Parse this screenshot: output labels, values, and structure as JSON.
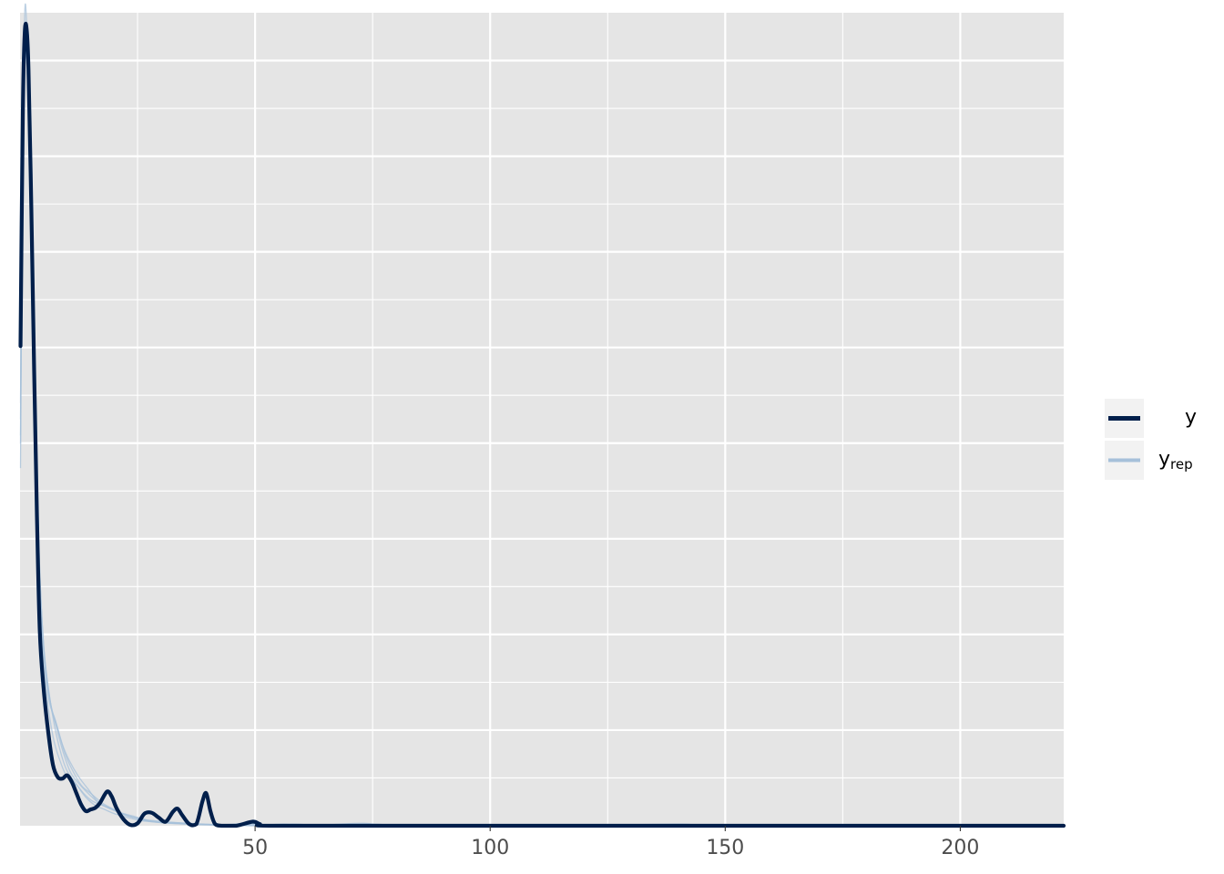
{
  "chart_data": {
    "type": "line",
    "title": "",
    "xlabel": "",
    "ylabel": "",
    "xlim": [
      0,
      222
    ],
    "ylim": [
      0,
      1
    ],
    "x_ticks": [
      50,
      100,
      150,
      200
    ],
    "x_tick_labels": [
      "50",
      "100",
      "150",
      "200"
    ],
    "grid": true,
    "legend_position": "right",
    "legend": [
      {
        "key": "y",
        "label": "y",
        "subscript": "",
        "color": "#011f4b",
        "line_width": "thick"
      },
      {
        "key": "yrep",
        "label": "y",
        "subscript": "rep",
        "color": "#a6c0da",
        "line_width": "thin"
      }
    ],
    "series": [
      {
        "name": "y",
        "role": "observed",
        "color": "#011f4b",
        "points": [
          [
            0.1,
            0.59
          ],
          [
            0.6,
            0.88
          ],
          [
            1.0,
            0.975
          ],
          [
            1.4,
            0.98
          ],
          [
            1.8,
            0.93
          ],
          [
            2.4,
            0.76
          ],
          [
            3.0,
            0.56
          ],
          [
            3.6,
            0.38
          ],
          [
            4.2,
            0.24
          ],
          [
            5.0,
            0.17
          ],
          [
            6.0,
            0.115
          ],
          [
            7.0,
            0.075
          ],
          [
            8.0,
            0.06
          ],
          [
            9.0,
            0.058
          ],
          [
            10.0,
            0.062
          ],
          [
            11.0,
            0.054
          ],
          [
            12.0,
            0.04
          ],
          [
            13.0,
            0.026
          ],
          [
            14.0,
            0.018
          ],
          [
            15.0,
            0.02
          ],
          [
            16.0,
            0.022
          ],
          [
            17.0,
            0.028
          ],
          [
            18.5,
            0.042
          ],
          [
            19.5,
            0.036
          ],
          [
            20.5,
            0.022
          ],
          [
            22.0,
            0.008
          ],
          [
            23.5,
            0.001
          ],
          [
            25.0,
            0.003
          ],
          [
            26.5,
            0.015
          ],
          [
            28.0,
            0.016
          ],
          [
            29.5,
            0.01
          ],
          [
            31.0,
            0.005
          ],
          [
            32.5,
            0.017
          ],
          [
            33.5,
            0.021
          ],
          [
            34.5,
            0.013
          ],
          [
            36.0,
            0.002
          ],
          [
            37.5,
            0.002
          ],
          [
            38.8,
            0.03
          ],
          [
            39.6,
            0.04
          ],
          [
            40.5,
            0.018
          ],
          [
            41.5,
            0.002
          ],
          [
            43.0,
            0.0
          ],
          [
            46.0,
            0.0
          ],
          [
            49.5,
            0.005
          ],
          [
            51.0,
            0.002
          ],
          [
            53.0,
            0.0
          ],
          [
            80.0,
            0.0
          ],
          [
            120.0,
            0.0
          ],
          [
            160.0,
            0.0
          ],
          [
            200.0,
            0.0
          ],
          [
            222.0,
            0.0
          ]
        ]
      },
      {
        "name": "y_rep",
        "role": "replicated",
        "color": "#a6c0da",
        "draws": [
          [
            [
              0.1,
              0.47
            ],
            [
              0.5,
              0.8
            ],
            [
              1.0,
              1.0
            ],
            [
              1.5,
              0.97
            ],
            [
              2.0,
              0.85
            ],
            [
              2.8,
              0.62
            ],
            [
              3.6,
              0.4
            ],
            [
              4.4,
              0.26
            ],
            [
              5.5,
              0.17
            ],
            [
              7.0,
              0.11
            ],
            [
              8.5,
              0.08
            ],
            [
              10.0,
              0.06
            ],
            [
              12.0,
              0.05
            ],
            [
              14.0,
              0.035
            ],
            [
              16.0,
              0.025
            ],
            [
              18.0,
              0.02
            ],
            [
              20.0,
              0.015
            ],
            [
              23.0,
              0.01
            ],
            [
              26.0,
              0.006
            ],
            [
              30.0,
              0.004
            ],
            [
              35.0,
              0.002
            ],
            [
              40.0,
              0.001
            ],
            [
              45.0,
              0.001
            ],
            [
              52.0,
              0.0
            ],
            [
              60.0,
              0.001
            ],
            [
              68.0,
              0.0
            ],
            [
              75.0,
              0.002
            ],
            [
              82.0,
              0.0
            ],
            [
              100.0,
              0.001
            ],
            [
              140.0,
              0.001
            ],
            [
              160.0,
              0.001
            ],
            [
              190.0,
              0.0
            ],
            [
              222.0,
              0.0
            ]
          ],
          [
            [
              0.1,
              0.5
            ],
            [
              0.6,
              0.84
            ],
            [
              1.1,
              0.96
            ],
            [
              1.7,
              0.9
            ],
            [
              2.4,
              0.72
            ],
            [
              3.2,
              0.52
            ],
            [
              4.0,
              0.33
            ],
            [
              5.0,
              0.22
            ],
            [
              6.5,
              0.15
            ],
            [
              8.0,
              0.12
            ],
            [
              9.5,
              0.09
            ],
            [
              11.0,
              0.07
            ],
            [
              13.0,
              0.05
            ],
            [
              15.0,
              0.04
            ],
            [
              17.5,
              0.028
            ],
            [
              20.0,
              0.02
            ],
            [
              22.0,
              0.014
            ],
            [
              25.0,
              0.009
            ],
            [
              28.0,
              0.005
            ],
            [
              32.0,
              0.003
            ],
            [
              38.0,
              0.002
            ],
            [
              44.0,
              0.001
            ],
            [
              50.0,
              0.0
            ],
            [
              56.0,
              0.002
            ],
            [
              62.0,
              0.0
            ],
            [
              90.0,
              0.001
            ],
            [
              120.0,
              0.0
            ],
            [
              186.0,
              0.001
            ],
            [
              222.0,
              0.0
            ]
          ],
          [
            [
              0.1,
              0.44
            ],
            [
              0.5,
              0.78
            ],
            [
              1.0,
              0.94
            ],
            [
              1.6,
              0.92
            ],
            [
              2.2,
              0.78
            ],
            [
              3.0,
              0.57
            ],
            [
              3.8,
              0.37
            ],
            [
              4.8,
              0.24
            ],
            [
              6.0,
              0.16
            ],
            [
              7.5,
              0.13
            ],
            [
              9.0,
              0.1
            ],
            [
              10.5,
              0.08
            ],
            [
              12.5,
              0.06
            ],
            [
              14.5,
              0.045
            ],
            [
              16.5,
              0.03
            ],
            [
              19.0,
              0.022
            ],
            [
              21.5,
              0.016
            ],
            [
              24.0,
              0.012
            ],
            [
              27.0,
              0.007
            ],
            [
              30.0,
              0.004
            ],
            [
              34.0,
              0.003
            ],
            [
              39.0,
              0.002
            ],
            [
              44.0,
              0.001
            ],
            [
              48.0,
              0.003
            ],
            [
              54.0,
              0.0
            ],
            [
              64.0,
              0.001
            ],
            [
              73.0,
              0.003
            ],
            [
              80.0,
              0.0
            ],
            [
              110.0,
              0.0
            ],
            [
              140.0,
              0.002
            ],
            [
              150.0,
              0.0
            ],
            [
              222.0,
              0.0
            ]
          ],
          [
            [
              0.1,
              0.52
            ],
            [
              0.6,
              0.86
            ],
            [
              1.2,
              0.95
            ],
            [
              1.8,
              0.88
            ],
            [
              2.5,
              0.7
            ],
            [
              3.3,
              0.5
            ],
            [
              4.2,
              0.31
            ],
            [
              5.2,
              0.21
            ],
            [
              6.8,
              0.14
            ],
            [
              8.2,
              0.1
            ],
            [
              9.8,
              0.07
            ],
            [
              11.5,
              0.055
            ],
            [
              13.5,
              0.04
            ],
            [
              15.5,
              0.03
            ],
            [
              18.0,
              0.024
            ],
            [
              20.5,
              0.018
            ],
            [
              23.0,
              0.012
            ],
            [
              26.0,
              0.008
            ],
            [
              29.0,
              0.006
            ],
            [
              33.0,
              0.004
            ],
            [
              37.0,
              0.002
            ],
            [
              42.0,
              0.001
            ],
            [
              47.0,
              0.002
            ],
            [
              55.0,
              0.0
            ],
            [
              70.0,
              0.001
            ],
            [
              95.0,
              0.0
            ],
            [
              130.0,
              0.001
            ],
            [
              170.0,
              0.0
            ],
            [
              222.0,
              0.0
            ]
          ],
          [
            [
              0.1,
              0.48
            ],
            [
              0.5,
              0.82
            ],
            [
              1.0,
              0.97
            ],
            [
              1.6,
              0.93
            ],
            [
              2.3,
              0.76
            ],
            [
              3.1,
              0.55
            ],
            [
              3.9,
              0.36
            ],
            [
              4.9,
              0.23
            ],
            [
              6.2,
              0.16
            ],
            [
              7.8,
              0.12
            ],
            [
              9.2,
              0.09
            ],
            [
              10.8,
              0.065
            ],
            [
              12.8,
              0.05
            ],
            [
              14.8,
              0.038
            ],
            [
              17.0,
              0.027
            ],
            [
              19.5,
              0.02
            ],
            [
              22.5,
              0.013
            ],
            [
              25.5,
              0.008
            ],
            [
              28.5,
              0.005
            ],
            [
              31.5,
              0.004
            ],
            [
              36.0,
              0.003
            ],
            [
              41.0,
              0.001
            ],
            [
              46.0,
              0.001
            ],
            [
              51.0,
              0.0
            ],
            [
              58.0,
              0.002
            ],
            [
              66.0,
              0.0
            ],
            [
              85.0,
              0.001
            ],
            [
              105.0,
              0.0
            ],
            [
              160.0,
              0.001
            ],
            [
              200.0,
              0.001
            ],
            [
              222.0,
              0.0
            ]
          ]
        ]
      }
    ]
  }
}
